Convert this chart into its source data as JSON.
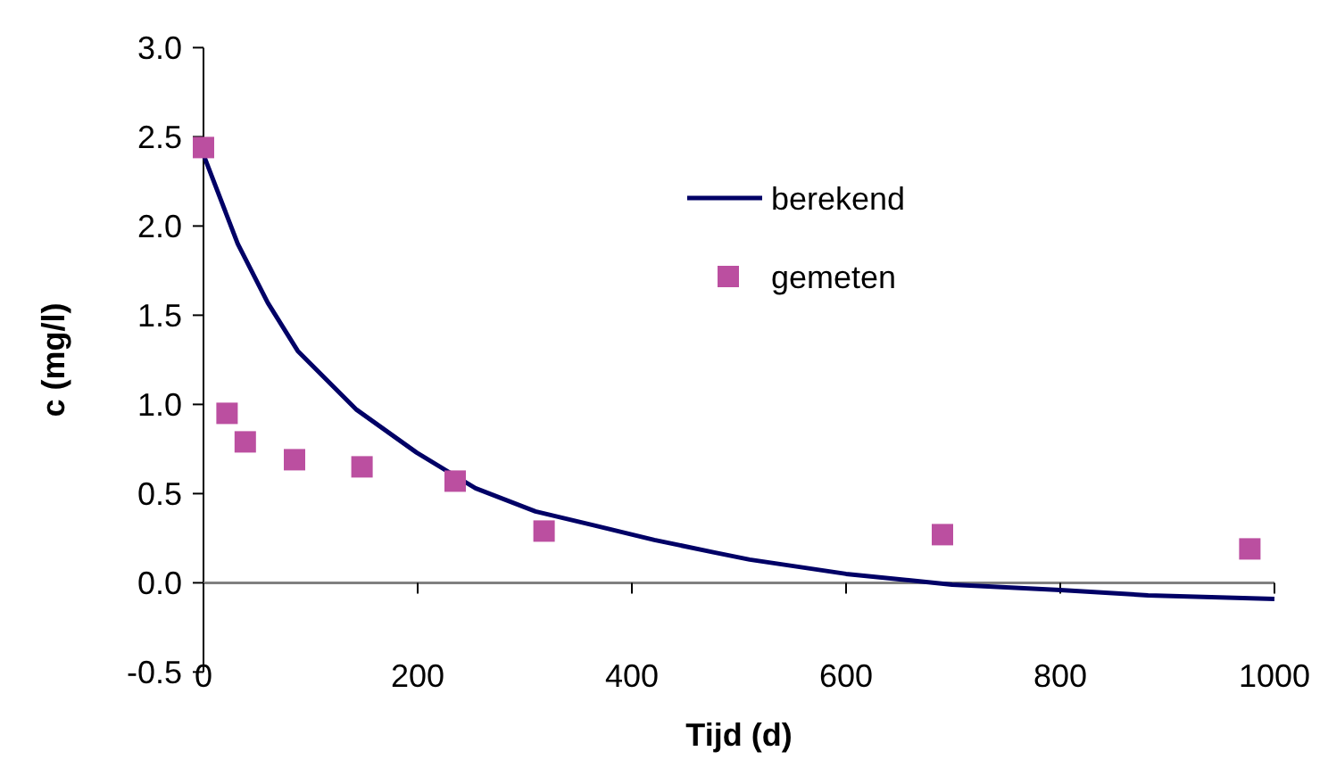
{
  "chart_data": {
    "type": "line",
    "xlabel": "Tijd (d)",
    "ylabel": "c (mg/l)",
    "xlim": [
      0,
      1000
    ],
    "xticks": [
      0,
      200,
      400,
      600,
      800,
      1000
    ],
    "ylim": [
      -0.5,
      3.0
    ],
    "yticks": [
      {
        "value": -0.5,
        "label": "-0.5"
      },
      {
        "value": 0,
        "label": "0.0"
      },
      {
        "value": 0.5,
        "label": "0.5"
      },
      {
        "value": 1,
        "label": "1.0"
      },
      {
        "value": 1.5,
        "label": "1.5"
      },
      {
        "value": 2,
        "label": "2.0"
      },
      {
        "value": 2.5,
        "label": "2.5"
      },
      {
        "value": 3,
        "label": "3.0"
      }
    ],
    "grid": false,
    "legend": "top right",
    "series": [
      {
        "name": "berekend",
        "color": "#000066",
        "line_style": "solid",
        "marker": "none",
        "x": [
          0,
          32,
          60,
          88,
          143,
          199,
          254,
          310,
          366,
          421,
          477,
          510,
          600,
          699,
          800,
          882,
          1000
        ],
        "values": [
          2.4,
          1.9,
          1.57,
          1.3,
          0.97,
          0.73,
          0.53,
          0.4,
          0.32,
          0.24,
          0.17,
          0.13,
          0.05,
          -0.01,
          -0.04,
          -0.07,
          -0.09
        ]
      },
      {
        "name": "gemeten",
        "type": "scatter",
        "color": "#bb4fa0",
        "marker": "square",
        "x": [
          0,
          22,
          39,
          85,
          148,
          235,
          318,
          690,
          977
        ],
        "values": [
          2.44,
          0.95,
          0.79,
          0.69,
          0.65,
          0.57,
          0.29,
          0.27,
          0.19
        ]
      }
    ]
  }
}
